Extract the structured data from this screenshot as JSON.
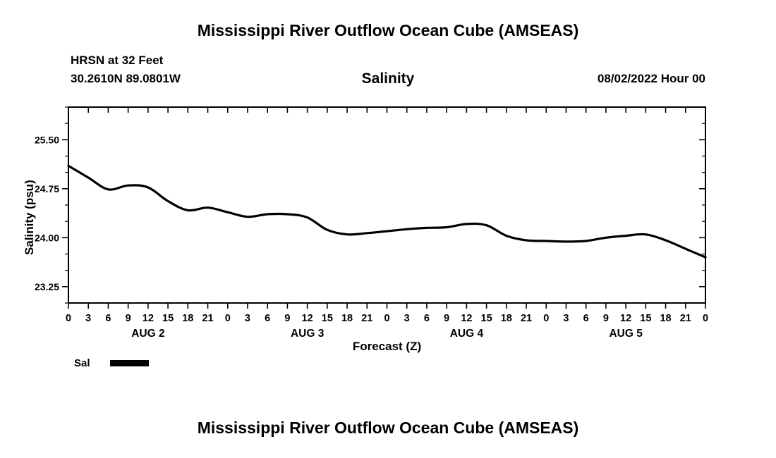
{
  "header": {
    "title": "Mississippi River Outflow Ocean Cube (AMSEAS)",
    "station": "HRSN at 32 Feet",
    "coords": "30.2610N  89.0801W",
    "variable": "Salinity",
    "datetime": "08/02/2022 Hour 00"
  },
  "footer": {
    "title": "Mississippi River Outflow Ocean Cube (AMSEAS)"
  },
  "legend": {
    "label": "Sal",
    "color": "#000000"
  },
  "chart_data": {
    "type": "line",
    "title": "Salinity",
    "xlabel": "Forecast (Z)",
    "ylabel": "Salinity (psu)",
    "xlim": [
      0,
      96
    ],
    "ylim": [
      23.0,
      26.0
    ],
    "yticks": [
      23.25,
      24.0,
      24.75,
      25.5
    ],
    "ytick_labels": [
      "23.25",
      "24.00",
      "24.75",
      "25.50"
    ],
    "ytick_minor_step": 0.25,
    "xtick_step_hours": 3,
    "xtick_labels": [
      "0",
      "3",
      "6",
      "9",
      "12",
      "15",
      "18",
      "21",
      "0",
      "3",
      "6",
      "9",
      "12",
      "15",
      "18",
      "21",
      "0",
      "3",
      "6",
      "9",
      "12",
      "15",
      "18",
      "21",
      "0",
      "3",
      "6",
      "9",
      "12",
      "15",
      "18",
      "21",
      "0"
    ],
    "day_labels": [
      {
        "label": "AUG 2",
        "hour": 12
      },
      {
        "label": "AUG 3",
        "hour": 36
      },
      {
        "label": "AUG 4",
        "hour": 60
      },
      {
        "label": "AUG 5",
        "hour": 84
      }
    ],
    "grid": false,
    "legend_position": "bottom-left",
    "series": [
      {
        "name": "Sal",
        "color": "#000000",
        "x": [
          0,
          3,
          6,
          9,
          12,
          15,
          18,
          21,
          24,
          27,
          30,
          33,
          36,
          39,
          42,
          45,
          48,
          51,
          54,
          57,
          60,
          63,
          66,
          69,
          72,
          75,
          78,
          81,
          84,
          87,
          90,
          93,
          96
        ],
        "values": [
          25.1,
          24.92,
          24.74,
          24.8,
          24.77,
          24.56,
          24.42,
          24.46,
          24.39,
          24.32,
          24.36,
          24.36,
          24.31,
          24.12,
          24.05,
          24.07,
          24.1,
          24.13,
          24.15,
          24.16,
          24.21,
          24.19,
          24.03,
          23.96,
          23.95,
          23.94,
          23.95,
          24.0,
          24.03,
          24.05,
          23.96,
          23.83,
          23.7
        ]
      }
    ]
  }
}
